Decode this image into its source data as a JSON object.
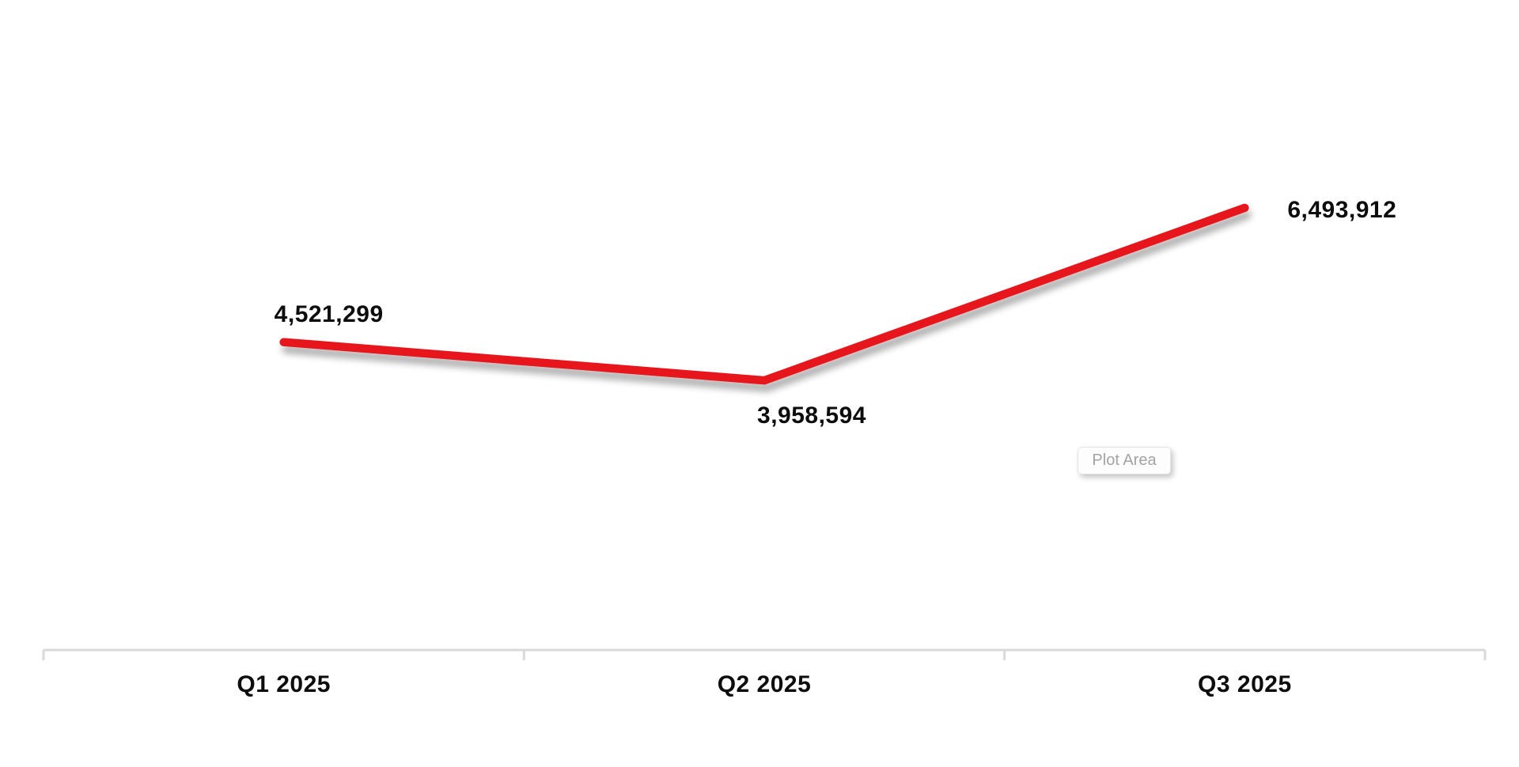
{
  "chart_data": {
    "type": "line",
    "categories": [
      "Q1 2025",
      "Q2 2025",
      "Q3 2025"
    ],
    "values": [
      4521299,
      3958594,
      6493912
    ],
    "data_labels": [
      "4,521,299",
      "3,958,594",
      "6,493,912"
    ],
    "title": "",
    "xlabel": "",
    "ylabel": "",
    "ylim": [
      0,
      9500000
    ],
    "grid": false,
    "legend": "none",
    "series_color": "#e6141a"
  },
  "tooltip": {
    "label": "Plot Area"
  },
  "colors": {
    "line": "#e6141a",
    "axis": "#d9d9d9",
    "label_text": "#0d0d0d",
    "tooltip_text": "#a3a3a3",
    "background": "#ffffff"
  }
}
